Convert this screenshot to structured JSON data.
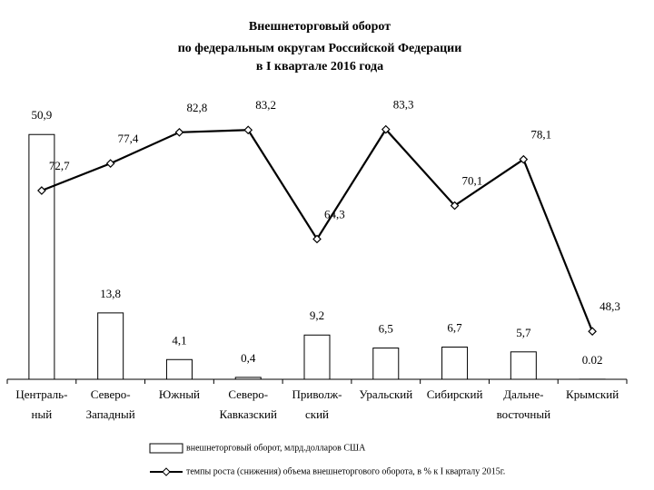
{
  "chart_data": {
    "type": "combo",
    "title": [
      "Внешнеторговый оборот",
      "по федеральным округам Российской Федерации"
    ],
    "subtitle": "в I квартале 2016 года",
    "categories": [
      "Централь-\nный",
      "Северо-\nЗападный",
      "Южный",
      "Северо-\nКавказский",
      "Приволж-\nский",
      "Уральский",
      "Сибирский",
      "Дальне-\nвосточный",
      "Крымский"
    ],
    "ylim": [
      0,
      60
    ],
    "y2lim": [
      40,
      90
    ],
    "series": [
      {
        "name": "внешнеторговый оборот, млрд.долларов США",
        "type": "bar",
        "color": "#ffffff",
        "values": [
          50.9,
          13.8,
          4.1,
          0.4,
          9.2,
          6.5,
          6.7,
          5.7,
          0.02
        ],
        "value_labels": [
          "50,9",
          "13,8",
          "4,1",
          "0,4",
          "9,2",
          "6,5",
          "6,7",
          "5,7",
          "0.02"
        ]
      },
      {
        "name": "темпы роста (снижения) объема внешнеторгового оборота, в % к I кварталу 2015г.",
        "type": "line",
        "axis": "y2",
        "color": "#000000",
        "values": [
          72.7,
          77.4,
          82.8,
          83.2,
          64.3,
          83.3,
          70.1,
          78.1,
          48.3
        ],
        "value_labels": [
          "72,7",
          "77,4",
          "82,8",
          "83,2",
          "64,3",
          "83,3",
          "70,1",
          "78,1",
          "48,3"
        ]
      }
    ]
  }
}
